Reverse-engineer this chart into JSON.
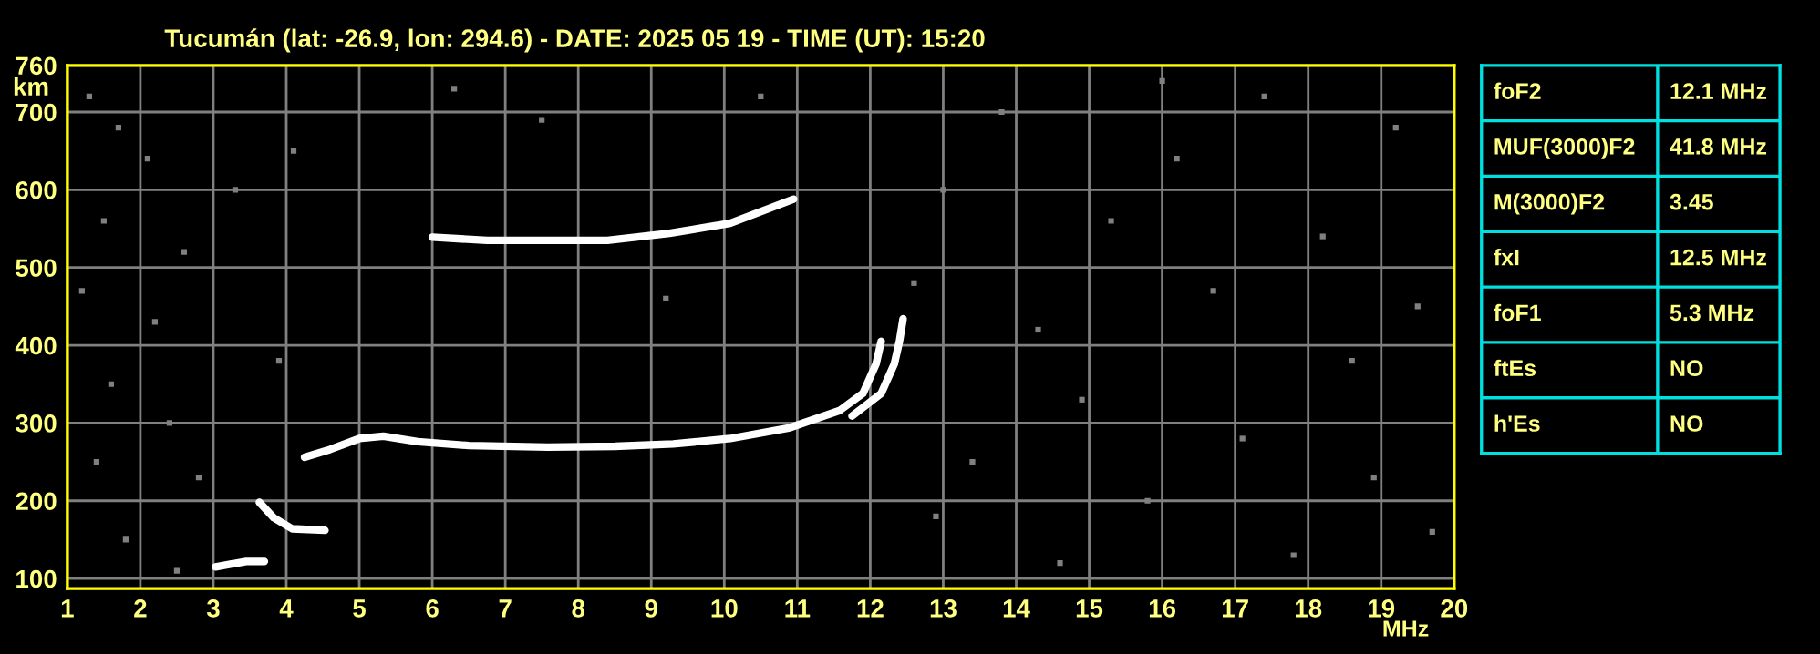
{
  "chart_data": [
    {
      "type": "line",
      "title": "Tucumán (lat: -26.9, lon: 294.6) - DATE: 2025 05 19 - TIME (UT): 15:20",
      "xlabel": "MHz",
      "ylabel": "km",
      "xlim": [
        1,
        20
      ],
      "ylim": [
        87,
        760
      ],
      "xticks": [
        1,
        2,
        3,
        4,
        5,
        6,
        7,
        8,
        9,
        10,
        11,
        12,
        13,
        14,
        15,
        16,
        17,
        18,
        19,
        20
      ],
      "yticks": [
        100,
        200,
        300,
        400,
        500,
        600,
        700,
        760
      ],
      "grid": true,
      "series": [
        {
          "type": "line",
          "color": "#ffffff",
          "x": [
            4.25,
            4.6,
            5.0,
            5.33,
            5.8,
            6.5,
            7.58,
            8.5,
            9.3,
            10.08,
            10.9,
            11.58,
            11.9,
            12.08,
            12.15
          ],
          "values": [
            256,
            266,
            280,
            283,
            276,
            271,
            269,
            270,
            273,
            280,
            294,
            316,
            338,
            376,
            405
          ]
        },
        {
          "type": "line",
          "color": "#ffffff",
          "x": [
            11.75,
            12.15,
            12.33,
            12.4,
            12.45
          ],
          "values": [
            309,
            338,
            376,
            405,
            434
          ]
        },
        {
          "type": "line",
          "color": "#ffffff",
          "x": [
            3.63,
            3.83,
            4.08,
            4.53
          ],
          "values": [
            198,
            178,
            164,
            162
          ]
        },
        {
          "type": "line",
          "color": "#ffffff",
          "x": [
            3.03,
            3.45,
            3.7
          ],
          "values": [
            115,
            122,
            122
          ]
        },
        {
          "type": "line",
          "color": "#ffffff",
          "x": [
            6.0,
            6.75,
            8.4,
            9.25,
            10.08,
            10.95
          ],
          "values": [
            539,
            535,
            535,
            544,
            557,
            588
          ]
        },
        {
          "type": "scatter",
          "color": "#808080",
          "marker": "square",
          "x": [
            1.3,
            1.7,
            2.1,
            1.5,
            2.6,
            1.2,
            2.2,
            1.6,
            2.4,
            1.4,
            2.8,
            1.8,
            2.5,
            3.3,
            3.9,
            4.1,
            6.3,
            7.5,
            9.2,
            10.5,
            12.6,
            13.0,
            13.4,
            13.8,
            14.3,
            14.9,
            15.3,
            15.8,
            16.2,
            16.7,
            17.1,
            17.4,
            17.8,
            18.2,
            18.6,
            18.9,
            19.2,
            19.5,
            19.7,
            14.6,
            12.9,
            16.0
          ],
          "values": [
            720,
            680,
            640,
            560,
            520,
            470,
            430,
            350,
            300,
            250,
            230,
            150,
            110,
            600,
            380,
            650,
            730,
            690,
            460,
            720,
            480,
            600,
            250,
            700,
            420,
            330,
            560,
            200,
            640,
            470,
            280,
            720,
            130,
            540,
            380,
            230,
            680,
            450,
            160,
            120,
            180,
            740
          ]
        }
      ]
    },
    {
      "type": "other",
      "annotations": [
        "foF2",
        "12.1 MHz",
        "MUF(3000)F2",
        "41.8 MHz",
        "M(3000)F2",
        "3.45",
        "fxI",
        "12.5 MHz",
        "foF1",
        "5.3 MHz",
        "ftEs",
        "NO",
        "h'Es",
        "NO"
      ]
    }
  ]
}
